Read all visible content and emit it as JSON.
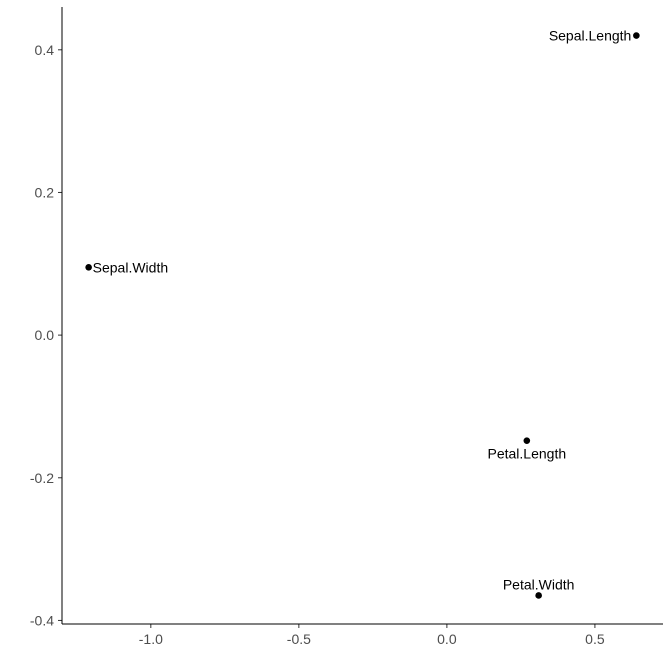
{
  "chart_data": {
    "type": "scatter",
    "title": "",
    "xlabel": "",
    "ylabel": "",
    "xlim": [
      -1.3,
      0.73
    ],
    "ylim": [
      -0.405,
      0.46
    ],
    "grid": false,
    "x_ticks": [
      {
        "value": -1.0,
        "label": "-1.0"
      },
      {
        "value": -0.5,
        "label": "-0.5"
      },
      {
        "value": 0.0,
        "label": "0.0"
      },
      {
        "value": 0.5,
        "label": "0.5"
      }
    ],
    "y_ticks": [
      {
        "value": 0.4,
        "label": "0.4"
      },
      {
        "value": 0.2,
        "label": "0.2"
      },
      {
        "value": 0.0,
        "label": "0.0"
      },
      {
        "value": -0.2,
        "label": "-0.2"
      },
      {
        "value": -0.4,
        "label": "-0.4"
      }
    ],
    "points": [
      {
        "label": "Sepal.Length",
        "x": 0.64,
        "y": 0.42,
        "label_position": "left"
      },
      {
        "label": "Sepal.Width",
        "x": -1.21,
        "y": 0.095,
        "label_position": "right"
      },
      {
        "label": "Petal.Length",
        "x": 0.27,
        "y": -0.148,
        "label_position": "below"
      },
      {
        "label": "Petal.Width",
        "x": 0.31,
        "y": -0.365,
        "label_position": "above"
      }
    ],
    "point_color": "#000000"
  }
}
